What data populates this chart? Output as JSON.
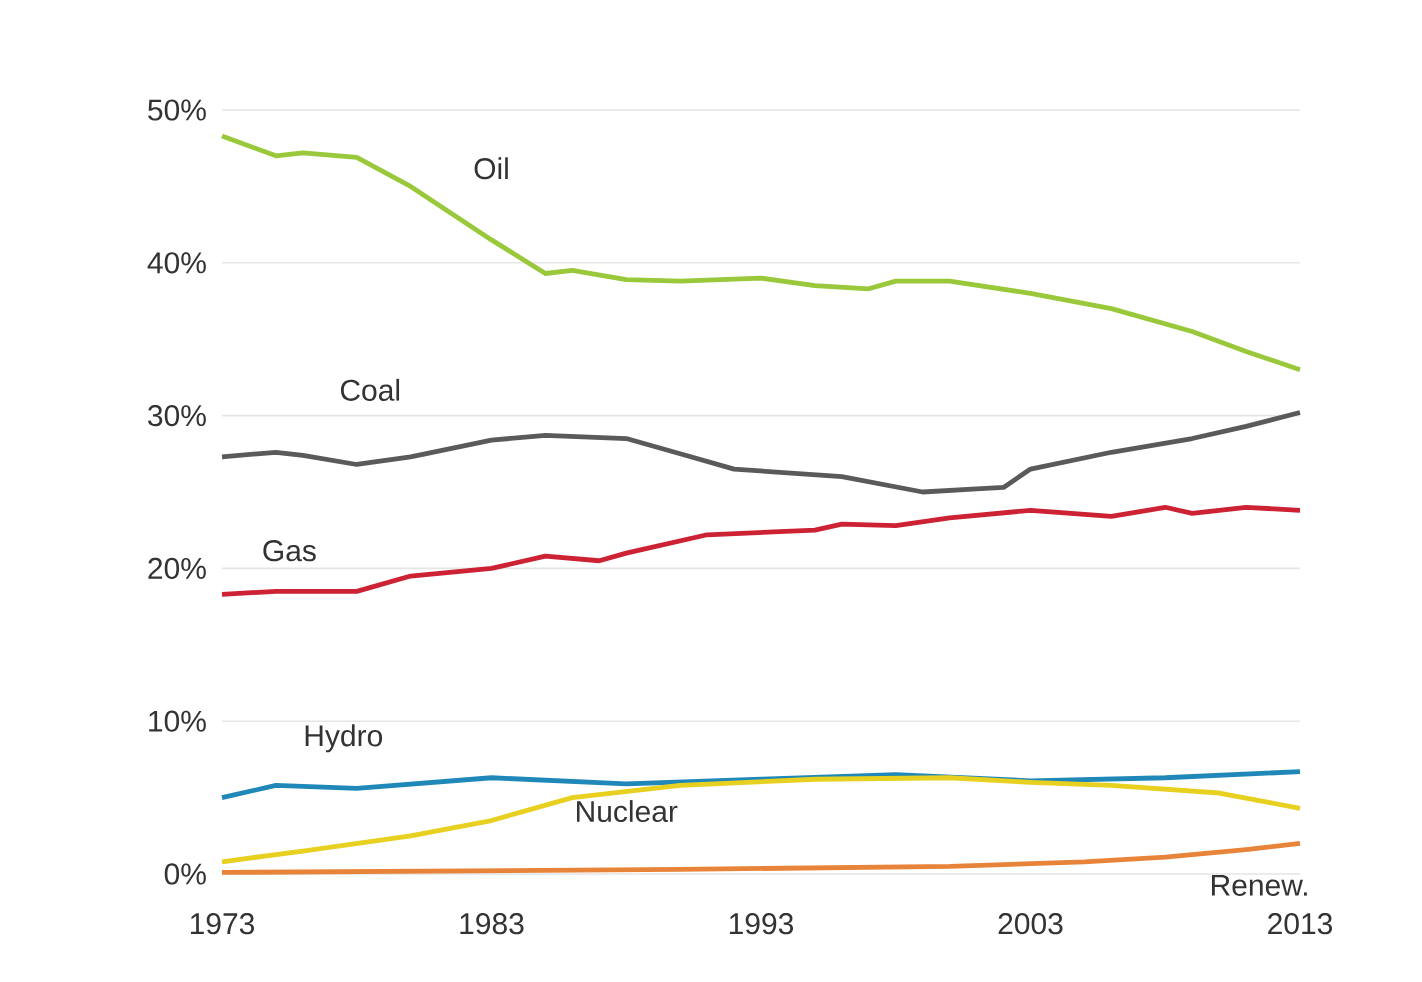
{
  "chart_data": {
    "type": "line",
    "grid": "y",
    "legend": false,
    "marker": "none",
    "line_style": "solid",
    "xlim": [
      1973,
      2013
    ],
    "xticks": [
      1973,
      1983,
      1993,
      2003,
      2013
    ],
    "ylim": [
      0,
      50
    ],
    "yticks": [
      {
        "value": 0,
        "label": "0%"
      },
      {
        "value": 10,
        "label": "10%"
      },
      {
        "value": 20,
        "label": "20%"
      },
      {
        "value": 30,
        "label": "30%"
      },
      {
        "value": 40,
        "label": "40%"
      },
      {
        "value": 50,
        "label": "50%"
      }
    ],
    "series": [
      {
        "name": "Oil",
        "color": "#99c83a",
        "x": [
          1973,
          1975,
          1976,
          1978,
          1980,
          1983,
          1985,
          1986,
          1988,
          1990,
          1993,
          1995,
          1997,
          1998,
          2000,
          2003,
          2006,
          2009,
          2011,
          2013
        ],
        "values": [
          48.3,
          47.0,
          47.2,
          46.9,
          45.0,
          41.5,
          39.3,
          39.5,
          38.9,
          38.8,
          39.0,
          38.5,
          38.3,
          38.8,
          38.8,
          38.0,
          37.0,
          35.5,
          34.2,
          33.0
        ]
      },
      {
        "name": "Coal",
        "color": "#5a5a5a",
        "x": [
          1973,
          1975,
          1976,
          1978,
          1980,
          1983,
          1985,
          1988,
          1990,
          1992,
          1996,
          1999,
          2001,
          2002,
          2003,
          2006,
          2009,
          2011,
          2013
        ],
        "values": [
          27.3,
          27.6,
          27.4,
          26.8,
          27.3,
          28.4,
          28.7,
          28.5,
          27.5,
          26.5,
          26.0,
          25.0,
          25.2,
          25.3,
          26.5,
          27.6,
          28.5,
          29.3,
          30.2
        ]
      },
      {
        "name": "Gas",
        "color": "#cc2233",
        "x": [
          1973,
          1975,
          1978,
          1980,
          1983,
          1985,
          1987,
          1988,
          1991,
          1995,
          1996,
          1998,
          2000,
          2003,
          2006,
          2008,
          2009,
          2011,
          2013
        ],
        "values": [
          18.3,
          18.5,
          18.5,
          19.5,
          20.0,
          20.8,
          20.5,
          21.0,
          22.2,
          22.5,
          22.9,
          22.8,
          23.3,
          23.8,
          23.4,
          24.0,
          23.6,
          24.0,
          23.8
        ]
      },
      {
        "name": "Hydro",
        "color": "#2088b8",
        "x": [
          1973,
          1975,
          1978,
          1983,
          1988,
          1993,
          1998,
          2003,
          2008,
          2013
        ],
        "values": [
          5.0,
          5.8,
          5.6,
          6.3,
          5.9,
          6.2,
          6.5,
          6.1,
          6.3,
          6.7
        ]
      },
      {
        "name": "Nuclear",
        "color": "#e8d020",
        "x": [
          1973,
          1976,
          1980,
          1983,
          1986,
          1990,
          1995,
          2000,
          2003,
          2006,
          2010,
          2013
        ],
        "values": [
          0.8,
          1.5,
          2.5,
          3.5,
          5.0,
          5.8,
          6.2,
          6.3,
          6.0,
          5.8,
          5.3,
          4.3
        ]
      },
      {
        "name": "Renew.",
        "color": "#e8843a",
        "x": [
          1973,
          1990,
          2000,
          2005,
          2008,
          2011,
          2013
        ],
        "values": [
          0.1,
          0.3,
          0.5,
          0.8,
          1.1,
          1.6,
          2.0
        ]
      }
    ]
  }
}
